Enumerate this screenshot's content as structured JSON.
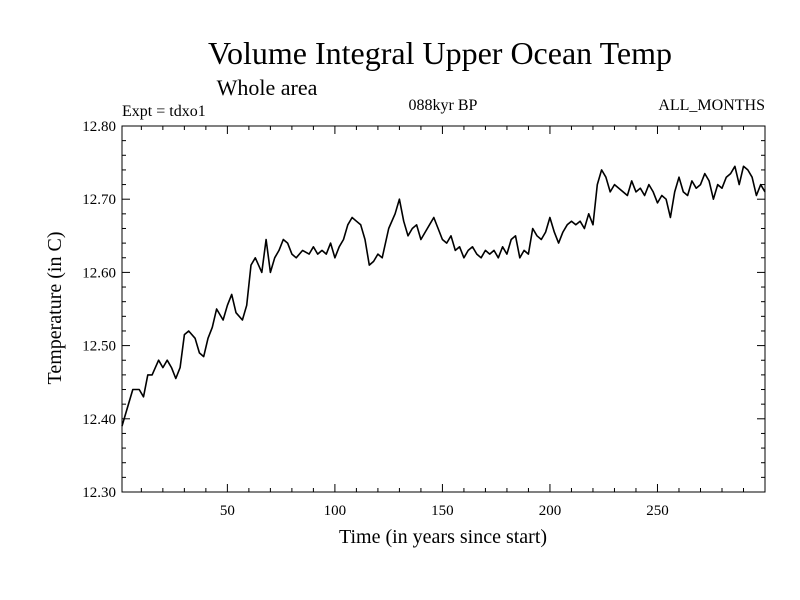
{
  "chart_data": {
    "type": "line",
    "title": "Volume Integral Upper Ocean Temp",
    "subtitle": "Whole area",
    "annotations": {
      "left": "Expt = tdxo1",
      "center": "088kyr BP",
      "right": "ALL_MONTHS"
    },
    "xlabel": "Time (in years since start)",
    "ylabel": "Temperature (in C)",
    "xlim": [
      1,
      300
    ],
    "ylim": [
      12.3,
      12.8
    ],
    "x_ticks": [
      50,
      100,
      150,
      200,
      250
    ],
    "x_tick_labels": [
      "50",
      "100",
      "150",
      "200",
      "250"
    ],
    "y_ticks": [
      12.3,
      12.4,
      12.5,
      12.6,
      12.7,
      12.8
    ],
    "y_tick_labels": [
      "12.30",
      "12.40",
      "12.50",
      "12.60",
      "12.70",
      "12.80"
    ],
    "grid": false,
    "legend": "none",
    "color": "#000000",
    "series": [
      {
        "x": [
          1,
          3,
          6,
          9,
          11,
          13,
          15,
          18,
          20,
          22,
          24,
          26,
          28,
          30,
          32,
          35,
          37,
          39,
          41,
          43,
          45,
          48,
          50,
          52,
          54,
          57,
          59,
          61,
          63,
          66,
          68,
          70,
          72,
          74,
          76,
          78,
          80,
          82,
          85,
          88,
          90,
          92,
          94,
          96,
          98,
          100,
          102,
          104,
          106,
          108,
          110,
          112,
          114,
          116,
          118,
          120,
          122,
          125,
          128,
          130,
          132,
          134,
          136,
          138,
          140,
          142,
          144,
          146,
          148,
          150,
          152,
          154,
          156,
          158,
          160,
          162,
          164,
          166,
          168,
          170,
          172,
          174,
          176,
          178,
          180,
          182,
          184,
          186,
          188,
          190,
          192,
          194,
          196,
          198,
          200,
          202,
          204,
          206,
          208,
          210,
          212,
          214,
          216,
          218,
          220,
          222,
          224,
          226,
          228,
          230,
          232,
          234,
          236,
          238,
          240,
          242,
          244,
          246,
          248,
          250,
          252,
          254,
          256,
          258,
          260,
          262,
          264,
          266,
          268,
          270,
          272,
          274,
          276,
          278,
          280,
          282,
          284,
          286,
          288,
          290,
          292,
          294,
          296,
          298,
          300
        ],
        "y": [
          12.39,
          12.41,
          12.44,
          12.44,
          12.43,
          12.46,
          12.46,
          12.48,
          12.47,
          12.48,
          12.47,
          12.455,
          12.47,
          12.515,
          12.52,
          12.51,
          12.49,
          12.485,
          12.51,
          12.525,
          12.55,
          12.535,
          12.555,
          12.57,
          12.545,
          12.535,
          12.555,
          12.61,
          12.62,
          12.6,
          12.645,
          12.6,
          12.62,
          12.63,
          12.645,
          12.64,
          12.625,
          12.62,
          12.63,
          12.625,
          12.635,
          12.625,
          12.63,
          12.625,
          12.64,
          12.62,
          12.635,
          12.645,
          12.665,
          12.675,
          12.67,
          12.665,
          12.645,
          12.61,
          12.615,
          12.625,
          12.62,
          12.66,
          12.68,
          12.7,
          12.67,
          12.65,
          12.66,
          12.665,
          12.645,
          12.655,
          12.665,
          12.675,
          12.66,
          12.645,
          12.64,
          12.65,
          12.63,
          12.635,
          12.62,
          12.63,
          12.635,
          12.625,
          12.62,
          12.63,
          12.625,
          12.63,
          12.62,
          12.635,
          12.625,
          12.645,
          12.65,
          12.62,
          12.63,
          12.625,
          12.66,
          12.65,
          12.645,
          12.655,
          12.675,
          12.655,
          12.64,
          12.655,
          12.665,
          12.67,
          12.665,
          12.67,
          12.66,
          12.68,
          12.665,
          12.72,
          12.74,
          12.73,
          12.71,
          12.72,
          12.715,
          12.71,
          12.705,
          12.725,
          12.71,
          12.715,
          12.705,
          12.72,
          12.71,
          12.695,
          12.705,
          12.7,
          12.675,
          12.71,
          12.73,
          12.71,
          12.705,
          12.725,
          12.715,
          12.72,
          12.735,
          12.725,
          12.7,
          12.72,
          12.715,
          12.73,
          12.735,
          12.745,
          12.72,
          12.745,
          12.74,
          12.73,
          12.705,
          12.72,
          12.71
        ]
      }
    ]
  }
}
